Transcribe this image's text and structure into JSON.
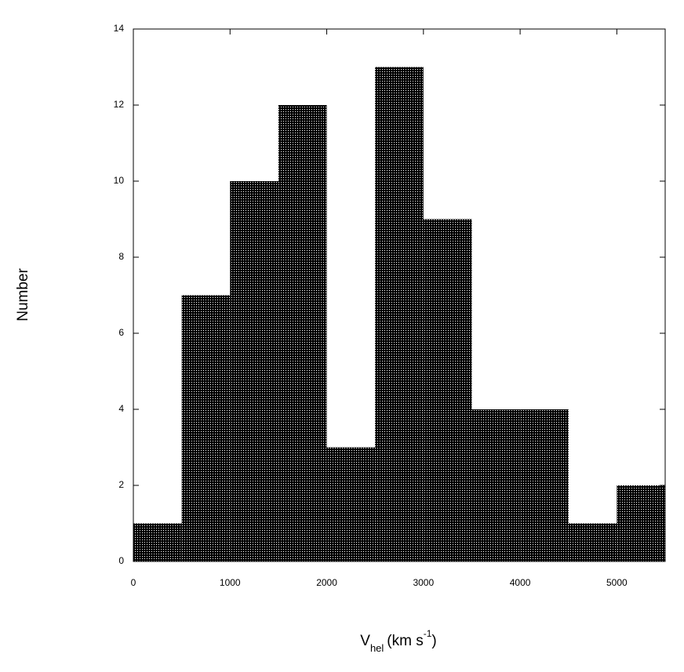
{
  "chart_data": {
    "type": "histogram",
    "bins": [
      0,
      500,
      1000,
      1500,
      2000,
      2500,
      3000,
      3500,
      4000,
      4500,
      5000,
      5500
    ],
    "values": [
      1,
      7,
      10,
      12,
      3,
      13,
      9,
      4,
      4,
      1,
      2
    ],
    "color": "#000000",
    "xlim": [
      0,
      5500
    ],
    "xticks": [
      0,
      1000,
      2000,
      3000,
      4000,
      5000
    ],
    "ylim": [
      0,
      14
    ],
    "yticks": [
      0,
      2,
      4,
      6,
      8,
      10,
      12,
      14
    ],
    "y_label": "Number",
    "x_label": {
      "main": "V",
      "sub": "hel",
      "unit": "(km s",
      "sup": "-1",
      "close": ")"
    }
  }
}
